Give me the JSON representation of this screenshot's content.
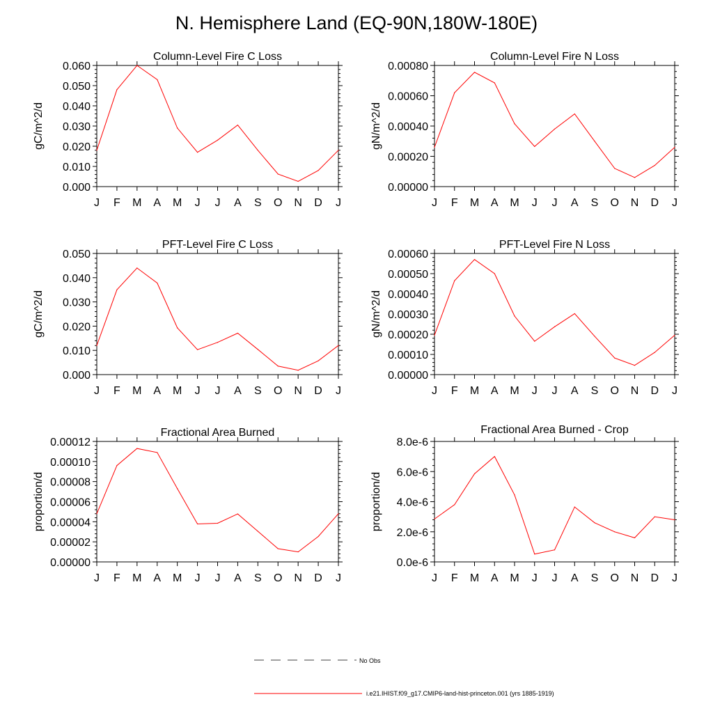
{
  "title": "N. Hemisphere Land (EQ-90N,180W-180E)",
  "months": [
    "J",
    "F",
    "M",
    "A",
    "M",
    "J",
    "J",
    "A",
    "S",
    "O",
    "N",
    "D",
    "J"
  ],
  "legend": {
    "obs_label": "No Obs",
    "model_label": "i.e21.IHIST.f09_g17.CMIP6-land-hist-princeton.001 (yrs 1885-1919)",
    "model_color": "#ff0000",
    "obs_color": "#000000"
  },
  "chart_data": [
    {
      "type": "line",
      "title": "Column-Level Fire C Loss",
      "ylabel": "gC/m^2/d",
      "ylim": [
        0,
        0.06
      ],
      "yticks": [
        "0.000",
        "0.010",
        "0.020",
        "0.030",
        "0.040",
        "0.050",
        "0.060"
      ],
      "categories": [
        "J",
        "F",
        "M",
        "A",
        "M",
        "J",
        "J",
        "A",
        "S",
        "O",
        "N",
        "D",
        "J"
      ],
      "series": [
        {
          "values": [
            0.018,
            0.048,
            0.06,
            0.053,
            0.029,
            0.017,
            0.023,
            0.0305,
            0.018,
            0.0062,
            0.0026,
            0.008,
            0.018
          ]
        }
      ]
    },
    {
      "type": "line",
      "title": "Column-Level Fire N Loss",
      "ylabel": "gN/m^2/d",
      "ylim": [
        0,
        0.0008
      ],
      "yticks": [
        "0.00000",
        "0.00020",
        "0.00040",
        "0.00060",
        "0.00080"
      ],
      "categories": [
        "J",
        "F",
        "M",
        "A",
        "M",
        "J",
        "J",
        "A",
        "S",
        "O",
        "N",
        "D",
        "J"
      ],
      "series": [
        {
          "values": [
            0.00026,
            0.00062,
            0.000755,
            0.000685,
            0.000415,
            0.000265,
            0.00038,
            0.00048,
            0.0003,
            0.00012,
            6e-05,
            0.00014,
            0.00026
          ]
        }
      ]
    },
    {
      "type": "line",
      "title": "PFT-Level Fire C Loss",
      "ylabel": "gC/m^2/d",
      "ylim": [
        0,
        0.05
      ],
      "yticks": [
        "0.000",
        "0.010",
        "0.020",
        "0.030",
        "0.040",
        "0.050"
      ],
      "categories": [
        "J",
        "F",
        "M",
        "A",
        "M",
        "J",
        "J",
        "A",
        "S",
        "O",
        "N",
        "D",
        "J"
      ],
      "series": [
        {
          "values": [
            0.012,
            0.035,
            0.044,
            0.0378,
            0.0193,
            0.0103,
            0.0133,
            0.0171,
            0.0104,
            0.0035,
            0.0018,
            0.0057,
            0.012
          ]
        }
      ]
    },
    {
      "type": "line",
      "title": "PFT-Level Fire N Loss",
      "ylabel": "gN/m^2/d",
      "ylim": [
        0,
        0.0006
      ],
      "yticks": [
        "0.00000",
        "0.00010",
        "0.00020",
        "0.00030",
        "0.00040",
        "0.00050",
        "0.00060"
      ],
      "categories": [
        "J",
        "F",
        "M",
        "A",
        "M",
        "J",
        "J",
        "A",
        "S",
        "O",
        "N",
        "D",
        "J"
      ],
      "series": [
        {
          "values": [
            0.000195,
            0.000465,
            0.00057,
            0.0005,
            0.00029,
            0.000165,
            0.000237,
            0.000302,
            0.00019,
            8.2e-05,
            4.6e-05,
            0.00011,
            0.000195
          ]
        }
      ]
    },
    {
      "type": "line",
      "title": "Fractional Area Burned",
      "ylabel": "proportion/d",
      "ylim": [
        0,
        0.00012
      ],
      "yticks": [
        "0.00000",
        "0.00002",
        "0.00004",
        "0.00006",
        "0.00008",
        "0.00010",
        "0.00012"
      ],
      "categories": [
        "J",
        "F",
        "M",
        "A",
        "M",
        "J",
        "J",
        "A",
        "S",
        "O",
        "N",
        "D",
        "J"
      ],
      "series": [
        {
          "values": [
            4.8e-05,
            9.6e-05,
            0.000113,
            0.000109,
            7.3e-05,
            3.78e-05,
            3.85e-05,
            4.78e-05,
            3.05e-05,
            1.32e-05,
            1e-05,
            2.53e-05,
            4.8e-05
          ]
        }
      ]
    },
    {
      "type": "line",
      "title": "Fractional Area Burned - Crop",
      "ylabel": "proportion/d",
      "ylim": [
        0,
        8e-06
      ],
      "yticks": [
        "0.0e-6",
        "2.0e-6",
        "4.0e-6",
        "6.0e-6",
        "8.0e-6"
      ],
      "categories": [
        "J",
        "F",
        "M",
        "A",
        "M",
        "J",
        "J",
        "A",
        "S",
        "O",
        "N",
        "D",
        "J"
      ],
      "series": [
        {
          "values": [
            2.85e-06,
            3.8e-06,
            5.85e-06,
            7e-06,
            4.45e-06,
            5.2e-07,
            8e-07,
            3.65e-06,
            2.6e-06,
            2e-06,
            1.6e-06,
            3e-06,
            2.8e-06
          ]
        }
      ]
    }
  ]
}
